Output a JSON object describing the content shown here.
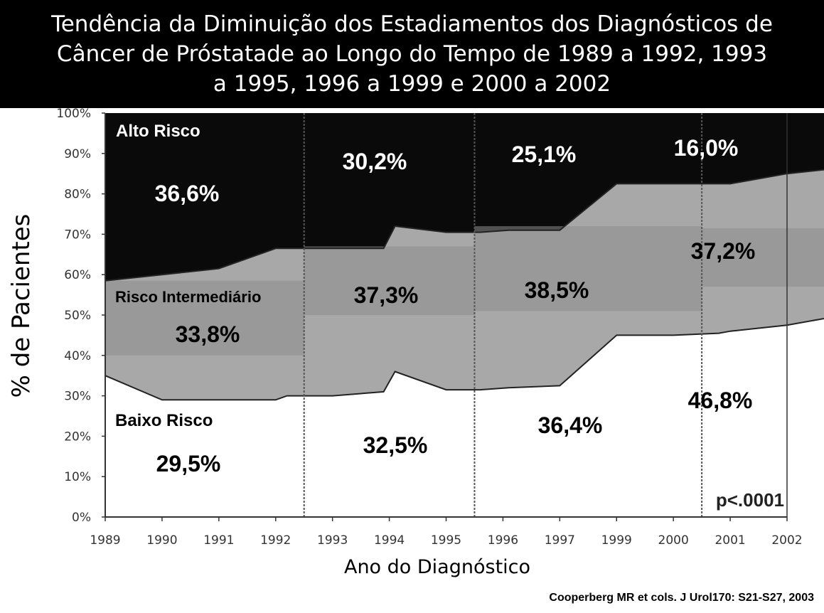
{
  "header": {
    "title": "Tendência da Diminuição dos Estadiamentos dos Diagnósticos de\nCâncer de Próstatade ao Longo do Tempo de 1989 a 1992, 1993\na 1995, 1996 a 1999  e 2000 a 2002"
  },
  "footer": {
    "citation": "Cooperberg MR et cols. J Urol170: S21-S27, 2003"
  },
  "chart_data": {
    "type": "area",
    "stacked": true,
    "xlabel": "Ano do Diagnóstico",
    "ylabel": "% de Pacientes",
    "ylim": [
      0,
      100
    ],
    "y_ticks": [
      "0%",
      "10%",
      "20%",
      "30%",
      "40%",
      "50%",
      "60%",
      "70%",
      "80%",
      "90%",
      "100%"
    ],
    "x_ticks": [
      "1989",
      "1990",
      "1991",
      "1992",
      "1993",
      "1994",
      "1995",
      "1996",
      "1997",
      "1999",
      "2000",
      "2001",
      "2002"
    ],
    "x": [
      0,
      1,
      2,
      3,
      3.2,
      4,
      4.9,
      5.1,
      6,
      6.6,
      7.1,
      8,
      9,
      10,
      10.8,
      11,
      12,
      13
    ],
    "series": [
      {
        "name": "Baixo Risco",
        "color": "#ffffff",
        "upper": [
          35,
          29,
          29,
          29,
          30,
          30,
          31,
          36,
          31.5,
          31.5,
          32,
          32.5,
          45,
          45,
          45.5,
          46,
          47.5,
          50
        ]
      },
      {
        "name": "Risco Intermediário",
        "color": "#a8a8a8",
        "upper": [
          58.5,
          60,
          61.5,
          66.5,
          66.5,
          66.5,
          66.5,
          72,
          70.5,
          70.5,
          71,
          71,
          82.5,
          82.5,
          82.5,
          82.5,
          85,
          86.5
        ]
      },
      {
        "name": "Alto Risco",
        "color": "#0a0a0a",
        "upper": [
          100,
          100,
          100,
          100,
          100,
          100,
          100,
          100,
          100,
          100,
          100,
          100,
          100,
          100,
          100,
          100,
          100,
          100
        ]
      }
    ],
    "period_dividers": [
      3.5,
      6.5,
      10.5
    ],
    "periods": [
      {
        "years": "1989-1992",
        "alto_risco": "36,6%",
        "risco_intermediario": "33,8%",
        "baixo_risco": "29,5%"
      },
      {
        "years": "1993-1995",
        "alto_risco": "30,2%",
        "risco_intermediario": "37,3%",
        "baixo_risco": "32,5%"
      },
      {
        "years": "1996-1999",
        "alto_risco": "25,1%",
        "risco_intermediario": "38,5%",
        "baixo_risco": "36,4%"
      },
      {
        "years": "2000-2002",
        "alto_risco": "16,0%",
        "risco_intermediario": "37,2%",
        "baixo_risco": "46,8%"
      }
    ],
    "region_labels": {
      "alto_risco": "Alto Risco",
      "risco_intermediario": "Risco Intermediário",
      "baixo_risco": "Baixo Risco"
    },
    "annotation": "p<.0001",
    "intermediate_band_color": "#8c8c8c",
    "divider_color": "#555555"
  }
}
